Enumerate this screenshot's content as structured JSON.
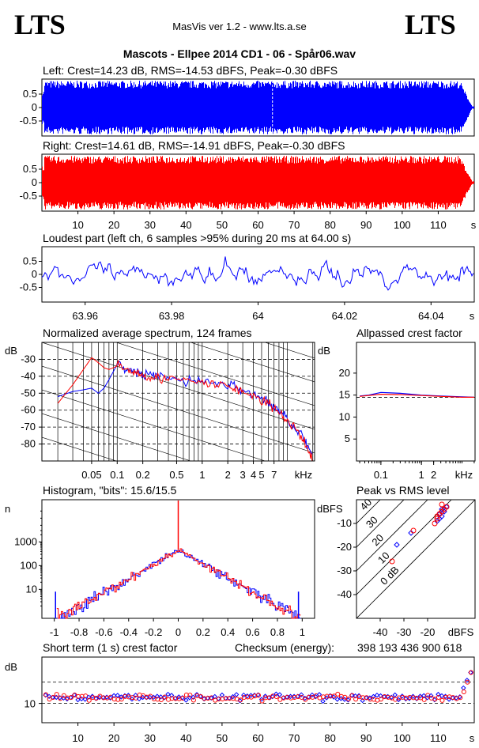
{
  "header": {
    "logo_left": "LTS",
    "logo_right": "LTS",
    "version": "MasVis ver 1.2 - www.lts.a.se",
    "file_title": "Mascots - Ellpee 2014 CD1 - 06 - Spår06.wav"
  },
  "colors": {
    "left": "#0000ff",
    "right": "#ff0000",
    "axis": "#000000"
  },
  "chart_data": [
    {
      "id": "left-waveform",
      "type": "area",
      "title": "Left: Crest=14.23 dB, RMS=-14.53 dBFS, Peak=-0.30 dBFS",
      "series": [
        {
          "name": "Left",
          "color": "#0000ff"
        }
      ],
      "ylim": [
        -1,
        1
      ],
      "yticks": [
        "0.5",
        "0",
        "-0.5"
      ],
      "xlim": [
        0,
        120
      ],
      "marker_at": 64,
      "fade_out_from": 116
    },
    {
      "id": "right-waveform",
      "type": "area",
      "title": "Right: Crest=14.61 dB, RMS=-14.91 dBFS, Peak=-0.30 dBFS",
      "series": [
        {
          "name": "Right",
          "color": "#ff0000"
        }
      ],
      "ylim": [
        -1,
        1
      ],
      "yticks": [
        "0.5",
        "0",
        "-0.5"
      ],
      "xlim": [
        0,
        120
      ],
      "xticks": [
        "10",
        "20",
        "30",
        "40",
        "50",
        "60",
        "70",
        "80",
        "90",
        "100",
        "110"
      ],
      "xunit": "s"
    },
    {
      "id": "loudest-part",
      "type": "line",
      "title": "Loudest part (left  ch, 6 samples >95% during 20 ms at 64.00 s)",
      "ylim": [
        -1,
        1
      ],
      "yticks": [
        "0.5",
        "0",
        "-0.5"
      ],
      "xlim": [
        63.95,
        64.05
      ],
      "xticks": [
        "63.96",
        "63.98",
        "64",
        "64.02",
        "64.04"
      ],
      "xunit": "s"
    },
    {
      "id": "spectrum",
      "type": "line",
      "title": "Normalized average spectrum, 124 frames",
      "ylabel": "dB",
      "yticks": [
        "-30",
        "-40",
        "-50",
        "-60",
        "-70",
        "-80"
      ],
      "ylim": [
        -90,
        -20
      ],
      "xticks": [
        "0.05",
        "0.1",
        "0.2",
        "0.5",
        "1",
        "2",
        "3",
        "4",
        "5",
        "7"
      ],
      "xunit": "kHz",
      "x_scale": "log",
      "series": [
        {
          "name": "Left",
          "color": "#0000ff",
          "x": [
            0.02,
            0.03,
            0.04,
            0.05,
            0.06,
            0.07,
            0.08,
            0.1,
            0.15,
            0.2,
            0.3,
            0.5,
            1,
            2,
            3,
            5,
            7,
            10,
            15,
            20
          ],
          "y": [
            -52,
            -49,
            -48,
            -47,
            -50,
            -47,
            -42,
            -33,
            -37,
            -39,
            -40,
            -42,
            -43,
            -45,
            -48,
            -53,
            -58,
            -65,
            -75,
            -88
          ]
        },
        {
          "name": "Right",
          "color": "#ff0000",
          "x": [
            0.02,
            0.03,
            0.04,
            0.05,
            0.06,
            0.07,
            0.08,
            0.1,
            0.15,
            0.2,
            0.3,
            0.5,
            1,
            2,
            3,
            5,
            7,
            10,
            15,
            20
          ],
          "y": [
            -56,
            -45,
            -36,
            -29,
            -32,
            -35,
            -36,
            -34,
            -37,
            -39,
            -41,
            -42,
            -44,
            -46,
            -49,
            -54,
            -59,
            -66,
            -76,
            -90
          ]
        }
      ]
    },
    {
      "id": "allpassed-crest",
      "type": "line",
      "title": "Allpassed crest factor",
      "ylabel": "dB",
      "yticks": [
        "20",
        "15",
        "10",
        "5"
      ],
      "ylim": [
        0,
        27
      ],
      "xticks": [
        "0.1",
        "1",
        "2"
      ],
      "xunit": "kHz",
      "x_scale": "log",
      "reference": 14.5,
      "series": [
        {
          "name": "Left",
          "color": "#0000ff",
          "x": [
            0.03,
            0.05,
            0.1,
            0.3,
            1,
            3,
            10,
            20
          ],
          "y": [
            14.8,
            15.0,
            15.6,
            15.4,
            15.0,
            14.8,
            14.6,
            14.5
          ]
        },
        {
          "name": "Right",
          "color": "#ff0000",
          "x": [
            0.03,
            0.05,
            0.1,
            0.3,
            1,
            3,
            10,
            20
          ],
          "y": [
            14.7,
            14.9,
            15.2,
            15.1,
            14.9,
            14.7,
            14.5,
            14.5
          ]
        }
      ]
    },
    {
      "id": "histogram",
      "type": "line",
      "title": "Histogram, \"bits\": 15.6/15.5",
      "ylabel": "n",
      "x_scale": "linear",
      "y_scale": "log",
      "yticks": [
        "1000",
        "100",
        "10"
      ],
      "xticks": [
        "-1",
        "-0.8",
        "-0.6",
        "-0.4",
        "-0.2",
        "0",
        "0.2",
        "0.4",
        "0.6",
        "0.8",
        "1"
      ],
      "xlim": [
        -1.1,
        1.1
      ]
    },
    {
      "id": "peak-vs-rms",
      "type": "scatter",
      "title": "Peak vs RMS level",
      "ylabel": "dBFS",
      "xlabel": "dBFS",
      "yticks": [
        "-10",
        "-20",
        "-30",
        "-40"
      ],
      "xticks": [
        "-40",
        "-30",
        "-20"
      ],
      "xlim": [
        -50,
        0
      ],
      "ylim": [
        -50,
        0
      ],
      "diagonal_labels": [
        "40",
        "30",
        "20",
        "10",
        "0 dB"
      ],
      "series": [
        {
          "name": "Left",
          "color": "#0000ff",
          "x": [
            -27,
            -33,
            -16,
            -15,
            -14,
            -13,
            -12,
            -14,
            -15
          ],
          "y": [
            -14,
            -19,
            -9,
            -8,
            -7,
            -5,
            -3,
            -4,
            -6
          ]
        },
        {
          "name": "Right",
          "color": "#ff0000",
          "x": [
            -26,
            -35,
            -17,
            -16,
            -15,
            -14,
            -13,
            -12,
            -14,
            -16
          ],
          "y": [
            -13,
            -26,
            -10,
            -8,
            -6,
            -5,
            -4,
            -3,
            -2,
            -7
          ]
        }
      ]
    },
    {
      "id": "short-term-crest",
      "type": "scatter",
      "title": "Short term (1 s) crest factor",
      "checksum_label": "Checksum (energy):",
      "checksum_value": "398 193 436 900 618",
      "ylabel": "dB",
      "yticks": [
        "10"
      ],
      "xticks": [
        "10",
        "20",
        "30",
        "40",
        "50",
        "60",
        "70",
        "80",
        "90",
        "100",
        "110"
      ],
      "xunit": "s",
      "xlim": [
        0,
        120
      ],
      "ylim": [
        5,
        22
      ]
    }
  ]
}
